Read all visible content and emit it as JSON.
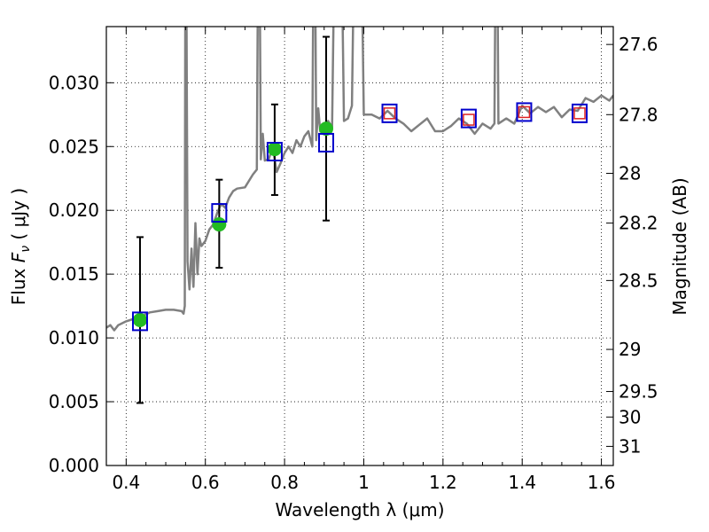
{
  "chart_data": {
    "type": "scatter",
    "title": "",
    "xlabel": "Wavelength  λ (μm)",
    "ylabel": "Flux  F_ν  ( μJy )",
    "y2label": "Magnitude (AB)",
    "xlim": [
      0.35,
      1.63
    ],
    "ylim": [
      0.0,
      0.0344
    ],
    "grid": true,
    "xticks": [
      0.4,
      0.6,
      0.8,
      1.0,
      1.2,
      1.4,
      1.6
    ],
    "xtick_labels": [
      "0.4",
      "0.6",
      "0.8",
      "1",
      "1.2",
      "1.4",
      "1.6"
    ],
    "yticks": [
      0.0,
      0.005,
      0.01,
      0.015,
      0.02,
      0.025,
      0.03
    ],
    "ytick_labels": [
      "0.000",
      "0.005",
      "0.010",
      "0.015",
      "0.020",
      "0.025",
      "0.030"
    ],
    "y2ticks": [
      {
        "label": "27.6",
        "flux": 0.033
      },
      {
        "label": "27.8",
        "flux": 0.0275
      },
      {
        "label": "28",
        "flux": 0.0229
      },
      {
        "label": "28.2",
        "flux": 0.019
      },
      {
        "label": "28.5",
        "flux": 0.0145
      },
      {
        "label": "29",
        "flux": 0.0091
      },
      {
        "label": "29.5",
        "flux": 0.0058
      },
      {
        "label": "30",
        "flux": 0.0038
      },
      {
        "label": "31",
        "flux": 0.0015
      }
    ],
    "series": [
      {
        "kind": "line",
        "color": "#808080",
        "x": [
          0.35,
          0.36,
          0.37,
          0.38,
          0.4,
          0.42,
          0.44,
          0.46,
          0.48,
          0.5,
          0.52,
          0.54,
          0.545,
          0.548,
          0.55,
          0.552,
          0.555,
          0.56,
          0.565,
          0.57,
          0.575,
          0.58,
          0.585,
          0.59,
          0.6,
          0.61,
          0.62,
          0.63,
          0.64,
          0.65,
          0.66,
          0.67,
          0.68,
          0.7,
          0.72,
          0.73,
          0.735,
          0.74,
          0.745,
          0.75,
          0.76,
          0.77,
          0.78,
          0.79,
          0.8,
          0.81,
          0.82,
          0.83,
          0.84,
          0.85,
          0.86,
          0.87,
          0.875,
          0.88,
          0.885,
          0.89,
          0.9,
          0.91,
          0.92,
          0.93,
          0.94,
          0.95,
          0.96,
          0.97,
          0.98,
          0.99,
          1.0,
          1.02,
          1.04,
          1.06,
          1.08,
          1.1,
          1.12,
          1.14,
          1.16,
          1.18,
          1.2,
          1.22,
          1.24,
          1.26,
          1.28,
          1.3,
          1.32,
          1.33,
          1.335,
          1.34,
          1.36,
          1.38,
          1.4,
          1.42,
          1.44,
          1.46,
          1.48,
          1.5,
          1.52,
          1.54,
          1.56,
          1.58,
          1.6,
          1.62,
          1.63
        ],
        "y": [
          0.0108,
          0.011,
          0.0106,
          0.011,
          0.0113,
          0.0115,
          0.0117,
          0.012,
          0.0121,
          0.0122,
          0.0122,
          0.0121,
          0.0119,
          0.0125,
          0.05,
          0.038,
          0.016,
          0.0138,
          0.017,
          0.014,
          0.019,
          0.015,
          0.0178,
          0.0172,
          0.0176,
          0.0185,
          0.0189,
          0.0198,
          0.0205,
          0.0202,
          0.021,
          0.0215,
          0.0217,
          0.0218,
          0.0228,
          0.0232,
          0.05,
          0.024,
          0.026,
          0.0239,
          0.024,
          0.025,
          0.023,
          0.0237,
          0.0245,
          0.025,
          0.0245,
          0.0255,
          0.025,
          0.0258,
          0.0262,
          0.025,
          0.05,
          0.0255,
          0.028,
          0.0262,
          0.0265,
          0.027,
          0.0265,
          0.05,
          0.05,
          0.027,
          0.0272,
          0.0282,
          0.05,
          0.05,
          0.0275,
          0.0275,
          0.0272,
          0.0278,
          0.0272,
          0.0268,
          0.0262,
          0.0267,
          0.0272,
          0.0262,
          0.0262,
          0.0266,
          0.0272,
          0.0268,
          0.026,
          0.0268,
          0.0264,
          0.0268,
          0.05,
          0.0268,
          0.0272,
          0.0268,
          0.0282,
          0.0276,
          0.0281,
          0.0277,
          0.0281,
          0.0273,
          0.0279,
          0.0278,
          0.0288,
          0.0285,
          0.029,
          0.0286,
          0.029
        ]
      },
      {
        "kind": "errorbar",
        "color": "#000000",
        "x": [
          0.435,
          0.635,
          0.775,
          0.905
        ],
        "y": [
          0.0114,
          0.0189,
          0.0248,
          0.0264
        ],
        "yerr_low": [
          0.0065,
          0.0034,
          0.0036,
          0.0072
        ],
        "yerr_high": [
          0.0065,
          0.0035,
          0.0035,
          0.0072
        ]
      },
      {
        "kind": "marker",
        "marker": "circle",
        "color": "#22bb22",
        "x": [
          0.435,
          0.635,
          0.775,
          0.905
        ],
        "y": [
          0.0114,
          0.0189,
          0.0248,
          0.0264
        ]
      },
      {
        "kind": "marker",
        "marker": "open-square",
        "color": "#0000cc",
        "x": [
          0.435,
          0.635,
          0.775,
          0.905,
          1.065,
          1.265,
          1.405,
          1.545
        ],
        "y": [
          0.0113,
          0.0198,
          0.0246,
          0.0253,
          0.0276,
          0.0272,
          0.0277,
          0.0276
        ]
      },
      {
        "kind": "marker",
        "marker": "open-square-small",
        "color": "#dd2222",
        "x": [
          1.065,
          1.265,
          1.405,
          1.545
        ],
        "y": [
          0.0276,
          0.0271,
          0.0277,
          0.0276
        ]
      }
    ]
  }
}
